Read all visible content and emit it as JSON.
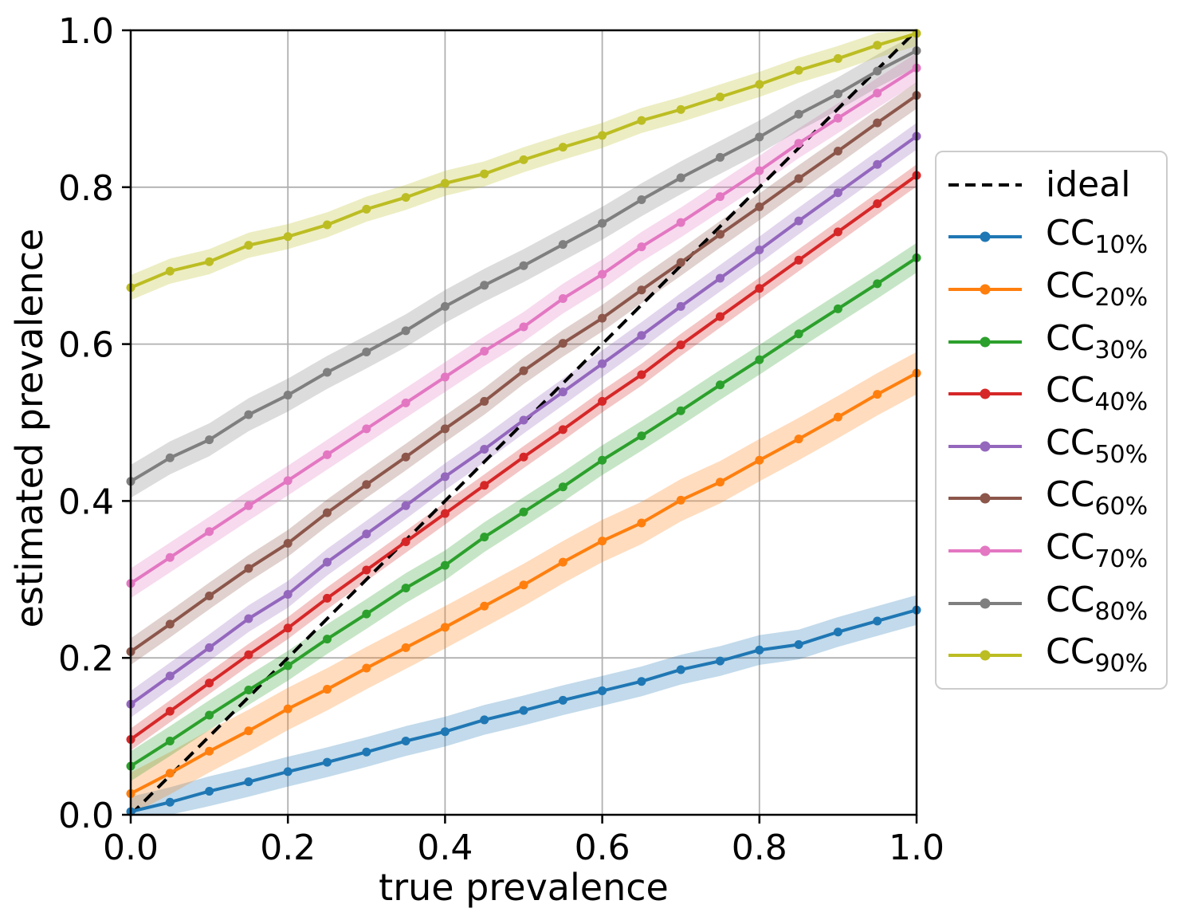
{
  "chart_data": {
    "type": "line",
    "title": "",
    "xlabel": "true prevalence",
    "ylabel": "estimated prevalence",
    "xlim": [
      0.0,
      1.0
    ],
    "ylim": [
      0.0,
      1.0
    ],
    "xticks": [
      0.0,
      0.2,
      0.4,
      0.6,
      0.8,
      1.0
    ],
    "yticks": [
      0.0,
      0.2,
      0.4,
      0.6,
      0.8,
      1.0
    ],
    "grid": true,
    "grid_color": "#b0b0b0",
    "background": "#ffffff",
    "legend_position": "outside-right",
    "x": [
      0.0,
      0.05,
      0.1,
      0.15,
      0.2,
      0.25,
      0.3,
      0.35,
      0.4,
      0.45,
      0.5,
      0.55,
      0.6,
      0.65,
      0.7,
      0.75,
      0.8,
      0.85,
      0.9,
      0.95,
      1.0
    ],
    "ideal_line": {
      "label": "ideal",
      "color": "#000000",
      "style": "dashed",
      "points": [
        [
          0.0,
          0.0
        ],
        [
          1.0,
          1.0
        ]
      ]
    },
    "series": [
      {
        "name": "CC",
        "subscript": "10%",
        "legend_label": "CC10%",
        "color": "#1f77b4",
        "band_halfwidth": 0.019,
        "values": [
          0.004,
          0.016,
          0.03,
          0.042,
          0.055,
          0.067,
          0.08,
          0.094,
          0.106,
          0.121,
          0.133,
          0.146,
          0.158,
          0.17,
          0.185,
          0.196,
          0.21,
          0.217,
          0.233,
          0.247,
          0.261
        ]
      },
      {
        "name": "CC",
        "subscript": "20%",
        "legend_label": "CC20%",
        "color": "#ff7f0e",
        "band_halfwidth": 0.027,
        "values": [
          0.027,
          0.053,
          0.081,
          0.107,
          0.135,
          0.16,
          0.187,
          0.213,
          0.239,
          0.266,
          0.293,
          0.322,
          0.349,
          0.372,
          0.401,
          0.424,
          0.452,
          0.479,
          0.507,
          0.536,
          0.563
        ]
      },
      {
        "name": "CC",
        "subscript": "30%",
        "legend_label": "CC30%",
        "color": "#2ca02c",
        "band_halfwidth": 0.019,
        "values": [
          0.062,
          0.094,
          0.127,
          0.159,
          0.19,
          0.224,
          0.256,
          0.289,
          0.318,
          0.354,
          0.386,
          0.418,
          0.452,
          0.483,
          0.515,
          0.548,
          0.58,
          0.613,
          0.645,
          0.677,
          0.71
        ]
      },
      {
        "name": "CC",
        "subscript": "40%",
        "legend_label": "CC40%",
        "color": "#d62728",
        "band_halfwidth": 0.014,
        "values": [
          0.096,
          0.132,
          0.168,
          0.204,
          0.238,
          0.276,
          0.312,
          0.348,
          0.384,
          0.42,
          0.456,
          0.491,
          0.527,
          0.561,
          0.599,
          0.635,
          0.671,
          0.707,
          0.743,
          0.779,
          0.815
        ]
      },
      {
        "name": "CC",
        "subscript": "50%",
        "legend_label": "CC50%",
        "color": "#9467bd",
        "band_halfwidth": 0.017,
        "values": [
          0.141,
          0.177,
          0.213,
          0.25,
          0.281,
          0.322,
          0.358,
          0.394,
          0.431,
          0.466,
          0.503,
          0.539,
          0.575,
          0.611,
          0.648,
          0.684,
          0.72,
          0.757,
          0.793,
          0.829,
          0.865
        ]
      },
      {
        "name": "CC",
        "subscript": "60%",
        "legend_label": "CC60%",
        "color": "#8c564b",
        "band_halfwidth": 0.017,
        "values": [
          0.208,
          0.243,
          0.279,
          0.314,
          0.346,
          0.385,
          0.421,
          0.456,
          0.492,
          0.527,
          0.566,
          0.601,
          0.633,
          0.669,
          0.704,
          0.74,
          0.775,
          0.811,
          0.846,
          0.882,
          0.917
        ]
      },
      {
        "name": "CC",
        "subscript": "70%",
        "legend_label": "CC70%",
        "color": "#e377c2",
        "band_halfwidth": 0.019,
        "values": [
          0.295,
          0.328,
          0.361,
          0.394,
          0.426,
          0.459,
          0.492,
          0.525,
          0.558,
          0.591,
          0.622,
          0.658,
          0.689,
          0.724,
          0.755,
          0.788,
          0.821,
          0.856,
          0.888,
          0.92,
          0.952
        ]
      },
      {
        "name": "CC",
        "subscript": "80%",
        "legend_label": "CC80%",
        "color": "#7f7f7f",
        "band_halfwidth": 0.021,
        "values": [
          0.425,
          0.455,
          0.478,
          0.51,
          0.535,
          0.564,
          0.59,
          0.617,
          0.648,
          0.675,
          0.7,
          0.727,
          0.754,
          0.784,
          0.812,
          0.838,
          0.864,
          0.893,
          0.919,
          0.948,
          0.974
        ]
      },
      {
        "name": "CC",
        "subscript": "90%",
        "legend_label": "CC90%",
        "color": "#bcbd22",
        "band_halfwidth": 0.016,
        "values": [
          0.672,
          0.693,
          0.705,
          0.726,
          0.737,
          0.752,
          0.772,
          0.787,
          0.805,
          0.817,
          0.835,
          0.851,
          0.866,
          0.885,
          0.899,
          0.915,
          0.931,
          0.949,
          0.964,
          0.981,
          0.996
        ]
      }
    ]
  }
}
